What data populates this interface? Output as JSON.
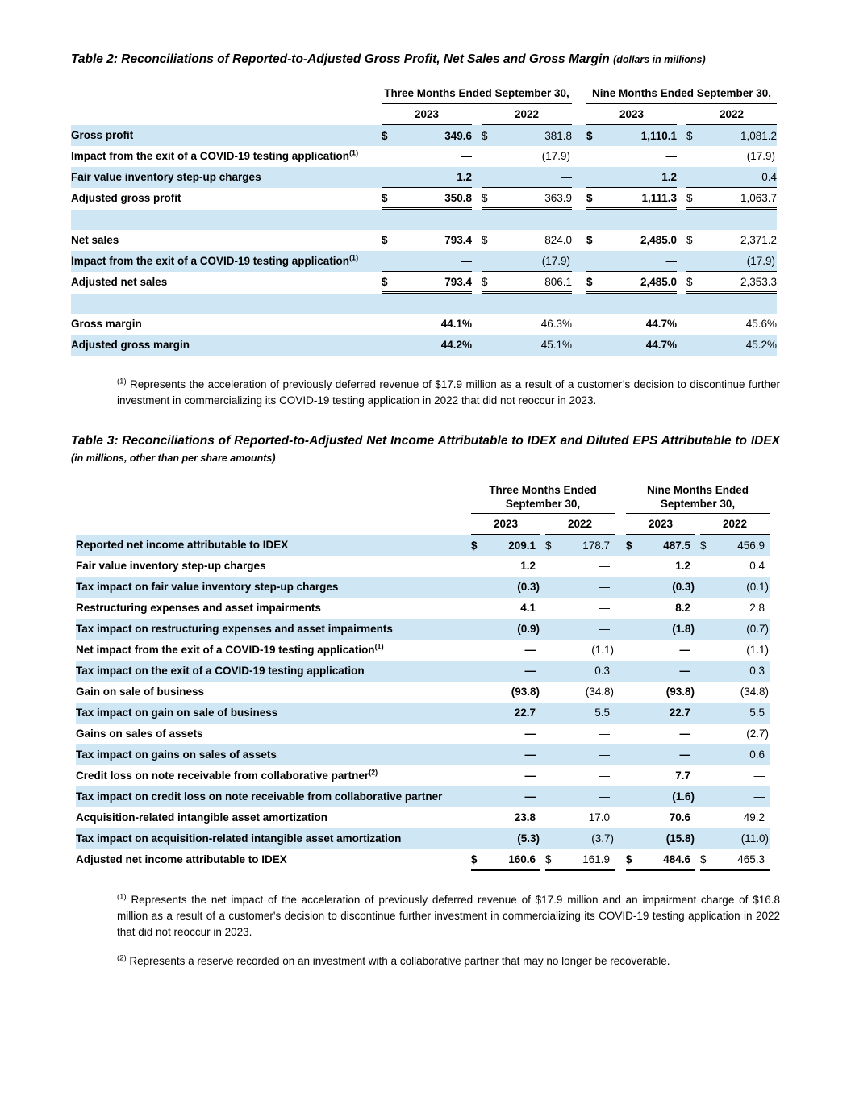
{
  "doc": {
    "highlight_color": "#cfe7f5"
  },
  "table2": {
    "title_main": "Table 2: Reconciliations of Reported-to-Adjusted Gross Profit, Net Sales and Gross Margin",
    "title_note": "(dollars in millions)",
    "group_headers": [
      "Three Months Ended September 30,",
      "Nine Months Ended September 30,"
    ],
    "years": [
      "2023",
      "2022",
      "2023",
      "2022"
    ],
    "rows": [
      {
        "label": "Gross profit",
        "indent": 0,
        "dollar": true,
        "shade": true,
        "values": [
          "349.6",
          "381.8",
          "1,110.1",
          "1,081.2"
        ]
      },
      {
        "label": "Impact from the exit of a COVID-19 testing application",
        "sup": "(1)",
        "indent": 1,
        "shade": false,
        "values": [
          "—",
          "(17.9)",
          "—",
          "(17.9)"
        ]
      },
      {
        "label": "Fair value inventory step-up charges",
        "indent": 1,
        "shade": true,
        "rule": "single",
        "values": [
          "1.2",
          "—",
          "1.2",
          "0.4"
        ]
      },
      {
        "label": "Adjusted gross profit",
        "indent": 0,
        "dollar": true,
        "shade": false,
        "rule": "double",
        "values": [
          "350.8",
          "363.9",
          "1,111.3",
          "1,063.7"
        ]
      },
      {
        "spacer": true,
        "shade": true
      },
      {
        "label": "Net sales",
        "indent": 0,
        "dollar": true,
        "shade": false,
        "values": [
          "793.4",
          "824.0",
          "2,485.0",
          "2,371.2"
        ]
      },
      {
        "label": "Impact from the exit of a COVID-19 testing application",
        "sup": "(1)",
        "indent": 1,
        "shade": true,
        "rule": "single",
        "values": [
          "—",
          "(17.9)",
          "—",
          "(17.9)"
        ]
      },
      {
        "label": "Adjusted net sales",
        "indent": 0,
        "dollar": true,
        "shade": false,
        "rule": "double",
        "values": [
          "793.4",
          "806.1",
          "2,485.0",
          "2,353.3"
        ]
      },
      {
        "spacer": true,
        "shade": true
      },
      {
        "label": "Gross margin",
        "indent": 0,
        "shade": false,
        "values": [
          "44.1%",
          "46.3%",
          "44.7%",
          "45.6%"
        ]
      },
      {
        "label": "Adjusted gross margin",
        "indent": 0,
        "shade": true,
        "values": [
          "44.2%",
          "45.1%",
          "44.7%",
          "45.2%"
        ]
      }
    ],
    "footnotes": [
      {
        "sup": "(1)",
        "text": "Represents the acceleration of previously deferred revenue of $17.9 million as a result of a customer’s decision to discontinue further investment in commercializing its COVID-19 testing application in 2022 that did not reoccur in 2023."
      }
    ]
  },
  "table3": {
    "title_main": "Table 3: Reconciliations of Reported-to-Adjusted Net Income Attributable to IDEX and Diluted EPS Attributable to IDEX",
    "title_note": "(in millions, other than per share amounts)",
    "group_headers": [
      "Three Months Ended September 30,",
      "Nine Months Ended September 30,"
    ],
    "years": [
      "2023",
      "2022",
      "2023",
      "2022"
    ],
    "rows": [
      {
        "label": "Reported net income attributable to IDEX",
        "indent": 0,
        "dollar": true,
        "shade": true,
        "values": [
          "209.1",
          "178.7",
          "487.5",
          "456.9"
        ]
      },
      {
        "label": "Fair value inventory step-up charges",
        "indent": 1,
        "shade": false,
        "values": [
          "1.2",
          "—",
          "1.2",
          "0.4"
        ]
      },
      {
        "label": "Tax impact on fair value inventory step-up charges",
        "indent": 2,
        "shade": true,
        "values": [
          "(0.3)",
          "—",
          "(0.3)",
          "(0.1)"
        ]
      },
      {
        "label": "Restructuring expenses and asset impairments",
        "indent": 1,
        "shade": false,
        "values": [
          "4.1",
          "—",
          "8.2",
          "2.8"
        ]
      },
      {
        "label": "Tax impact on restructuring expenses and asset impairments",
        "indent": 2,
        "shade": true,
        "values": [
          "(0.9)",
          "—",
          "(1.8)",
          "(0.7)"
        ]
      },
      {
        "label": "Net impact from the exit of a COVID-19 testing application",
        "sup": "(1)",
        "indent": 1,
        "shade": false,
        "values": [
          "—",
          "(1.1)",
          "—",
          "(1.1)"
        ]
      },
      {
        "label": "Tax impact on the exit of a COVID-19 testing application",
        "indent": 2,
        "shade": true,
        "values": [
          "—",
          "0.3",
          "—",
          "0.3"
        ]
      },
      {
        "label": "Gain on sale of business",
        "indent": 1,
        "shade": false,
        "values": [
          "(93.8)",
          "(34.8)",
          "(93.8)",
          "(34.8)"
        ]
      },
      {
        "label": "Tax impact on gain on sale of business",
        "indent": 2,
        "shade": true,
        "values": [
          "22.7",
          "5.5",
          "22.7",
          "5.5"
        ]
      },
      {
        "label": "Gains on sales of assets",
        "indent": 1,
        "shade": false,
        "values": [
          "—",
          "—",
          "—",
          "(2.7)"
        ]
      },
      {
        "label": "Tax impact on gains on sales of assets",
        "indent": 2,
        "shade": true,
        "values": [
          "—",
          "—",
          "—",
          "0.6"
        ]
      },
      {
        "label": "Credit loss on note receivable from collaborative partner",
        "sup": "(2)",
        "indent": 1,
        "shade": false,
        "values": [
          "—",
          "—",
          "7.7",
          "—"
        ]
      },
      {
        "label": "Tax impact on credit loss on note receivable from collaborative partner",
        "indent": 2,
        "shade": true,
        "values": [
          "—",
          "—",
          "(1.6)",
          "—"
        ]
      },
      {
        "label": "Acquisition-related intangible asset amortization",
        "indent": 1,
        "shade": false,
        "values": [
          "23.8",
          "17.0",
          "70.6",
          "49.2"
        ]
      },
      {
        "label": "Tax impact on acquisition-related intangible asset amortization",
        "indent": 2,
        "shade": true,
        "rule": "single",
        "values": [
          "(5.3)",
          "(3.7)",
          "(15.8)",
          "(11.0)"
        ]
      },
      {
        "label": "Adjusted net income attributable to IDEX",
        "indent": 0,
        "dollar": true,
        "shade": false,
        "rule": "double",
        "values": [
          "160.6",
          "161.9",
          "484.6",
          "465.3"
        ]
      }
    ],
    "footnotes": [
      {
        "sup": "(1)",
        "text": "Represents the net impact of the acceleration of previously deferred revenue of $17.9 million and an impairment charge of $16.8 million as a result of a customer's decision to discontinue further investment in commercializing its COVID-19 testing application in 2022 that did not reoccur in 2023."
      },
      {
        "sup": "(2)",
        "text": "Represents a reserve recorded on an investment with a collaborative partner that may no longer be recoverable."
      }
    ]
  }
}
